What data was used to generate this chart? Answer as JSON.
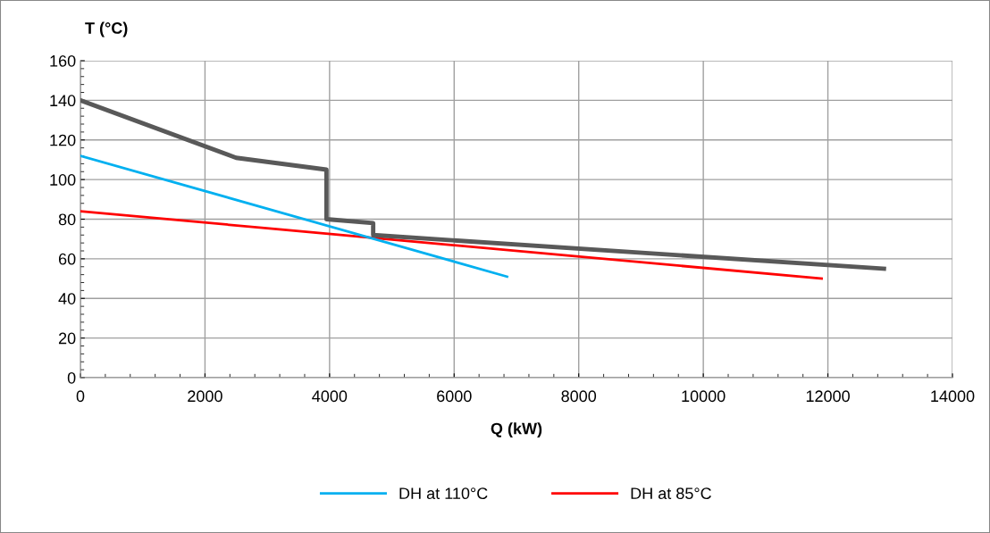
{
  "chart_data": {
    "type": "line",
    "xlabel": "Q (kW)",
    "ylabel": "T (°C)",
    "xlim": [
      0,
      14000
    ],
    "xticks": [
      0,
      2000,
      4000,
      6000,
      8000,
      10000,
      12000,
      14000
    ],
    "ylim": [
      0,
      160
    ],
    "yticks": [
      0,
      20,
      40,
      60,
      80,
      100,
      120,
      140,
      160
    ],
    "grid": true,
    "legend": "bottom",
    "marker": "none",
    "line_style": "solid",
    "series": [
      {
        "color": "#595959",
        "x": [
          0,
          2500,
          3950,
          3950,
          4700,
          4700,
          12900
        ],
        "values": [
          140,
          111,
          105,
          80,
          78,
          72,
          55
        ]
      },
      {
        "name": "DH at 110°C",
        "color": "#00b0f0",
        "x": [
          0,
          6850
        ],
        "values": [
          112,
          51
        ]
      },
      {
        "name": "DH at 85°C",
        "color": "#ff0000",
        "x": [
          0,
          11900
        ],
        "values": [
          84,
          50
        ]
      }
    ]
  }
}
